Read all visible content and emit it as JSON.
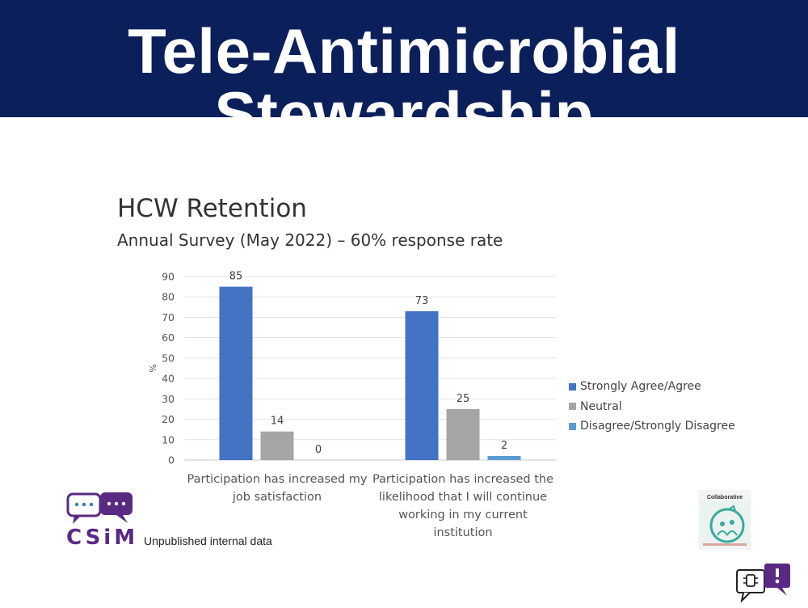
{
  "slide": {
    "title": "Tele-Antimicrobial Stewardship",
    "source_note": "Unpublished internal data",
    "logo_text": "CSiM",
    "badge_title": "Collaborative"
  },
  "icons": [
    "chat-bubbles-logo-icon",
    "collaborative-badge-icon",
    "chat-alert-icon"
  ],
  "colors": {
    "banner": "#0b1f5b",
    "strongly_agree": "#4472c4",
    "neutral": "#a5a5a5",
    "disagree": "#5b9bd5",
    "brand_purple": "#5a2a82"
  },
  "chart_data": {
    "type": "bar",
    "title": "HCW Retention",
    "subtitle": "Annual Survey (May 2022) – 60% response rate",
    "xlabel": "",
    "ylabel": "%",
    "ylim": [
      0,
      90
    ],
    "yticks": [
      0,
      10,
      20,
      30,
      40,
      50,
      60,
      70,
      80,
      90
    ],
    "grid": true,
    "legend_position": "right",
    "categories": [
      "Participation has increased my job satisfaction",
      "Participation has increased the likelihood that I will continue working in my current institution"
    ],
    "category_lines": [
      [
        "Participation has increased my",
        "job satisfaction"
      ],
      [
        "Participation has increased the",
        "likelihood that I will continue",
        "working in my current",
        "institution"
      ]
    ],
    "series": [
      {
        "name": "Strongly Agree/Agree",
        "values": [
          85,
          73
        ],
        "color": "#4472c4"
      },
      {
        "name": "Neutral",
        "values": [
          14,
          25
        ],
        "color": "#a5a5a5"
      },
      {
        "name": "Disagree/Strongly Disagree",
        "values": [
          0,
          2
        ],
        "color": "#5b9bd5"
      }
    ]
  }
}
